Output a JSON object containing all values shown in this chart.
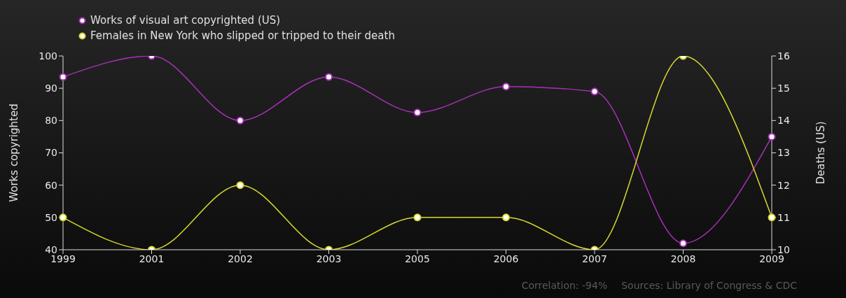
{
  "chart_data": {
    "type": "line",
    "categories": [
      "1999",
      "2001",
      "2002",
      "2003",
      "2005",
      "2006",
      "2007",
      "2008",
      "2009"
    ],
    "series": [
      {
        "name": "Works of visual art copyrighted (US)",
        "color": "#a830b8",
        "values": [
          93.5,
          100,
          80,
          93.5,
          82.5,
          90.5,
          89,
          42,
          75
        ]
      },
      {
        "name": "Females in New York who slipped or tripped to their death",
        "color": "#d8d830",
        "axis": "y2",
        "values": [
          11,
          10,
          12,
          10,
          11,
          11,
          10,
          16,
          11
        ]
      }
    ],
    "ylabel": "Works copyrighted",
    "y2label": "Deaths (US)",
    "ylim": [
      40,
      100
    ],
    "yticks": [
      40,
      50,
      60,
      70,
      80,
      90,
      100
    ],
    "y2lim": [
      10,
      16
    ],
    "y2ticks": [
      10,
      11,
      12,
      13,
      14,
      15,
      16
    ],
    "grid": false,
    "legend": "top left",
    "marker": "circle",
    "line_style": "solid",
    "annotations": [
      "Correlation: -94%",
      "Sources: Library of Congress & CDC"
    ]
  }
}
